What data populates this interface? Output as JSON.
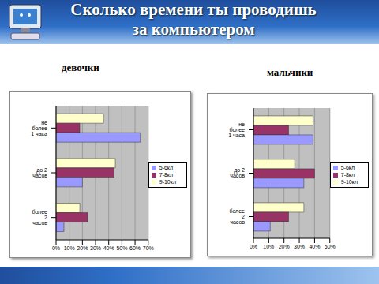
{
  "title": "Сколько времени ты проводишь за компьютером",
  "chart_data": [
    {
      "type": "bar",
      "title": "девочки",
      "orientation": "horizontal",
      "categories": [
        "не более 1 часа",
        "до 2 часов",
        "более 2 часов"
      ],
      "series": [
        {
          "name": "9-10кл",
          "color": "#ffffcc",
          "values": [
            36,
            45,
            18
          ]
        },
        {
          "name": "7-8кл",
          "color": "#993366",
          "values": [
            18,
            44,
            24
          ]
        },
        {
          "name": "5-6кл",
          "color": "#9999ff",
          "values": [
            64,
            20,
            6
          ]
        }
      ],
      "xlim": [
        0,
        70
      ],
      "xticks": [
        {
          "value": 0,
          "label": "0%"
        },
        {
          "value": 10,
          "label": "10%"
        },
        {
          "value": 20,
          "label": "20%"
        },
        {
          "value": 30,
          "label": "30%"
        },
        {
          "value": 40,
          "label": "40%"
        },
        {
          "value": 50,
          "label": "50%"
        },
        {
          "value": 60,
          "label": "60%"
        },
        {
          "value": 70,
          "label": "70%"
        }
      ],
      "grid": true,
      "legend": "right"
    },
    {
      "type": "bar",
      "title": "мальчики",
      "orientation": "horizontal",
      "categories": [
        "не более 1 часа",
        "до 2 часов",
        "более 2 часов"
      ],
      "series": [
        {
          "name": "9-10кл",
          "color": "#ffffcc",
          "values": [
            39,
            27,
            33
          ]
        },
        {
          "name": "7-8кл",
          "color": "#993366",
          "values": [
            23,
            40,
            23
          ]
        },
        {
          "name": "5-6кл",
          "color": "#9999ff",
          "values": [
            39,
            33,
            11
          ]
        }
      ],
      "xlim": [
        0,
        50
      ],
      "xticks": [
        {
          "value": 0,
          "label": "0%"
        },
        {
          "value": 10,
          "label": "10%"
        },
        {
          "value": 20,
          "label": "20%"
        },
        {
          "value": 30,
          "label": "30%"
        },
        {
          "value": 40,
          "label": "40%"
        },
        {
          "value": 50,
          "label": "50%"
        }
      ],
      "grid": true,
      "legend": "right"
    }
  ]
}
